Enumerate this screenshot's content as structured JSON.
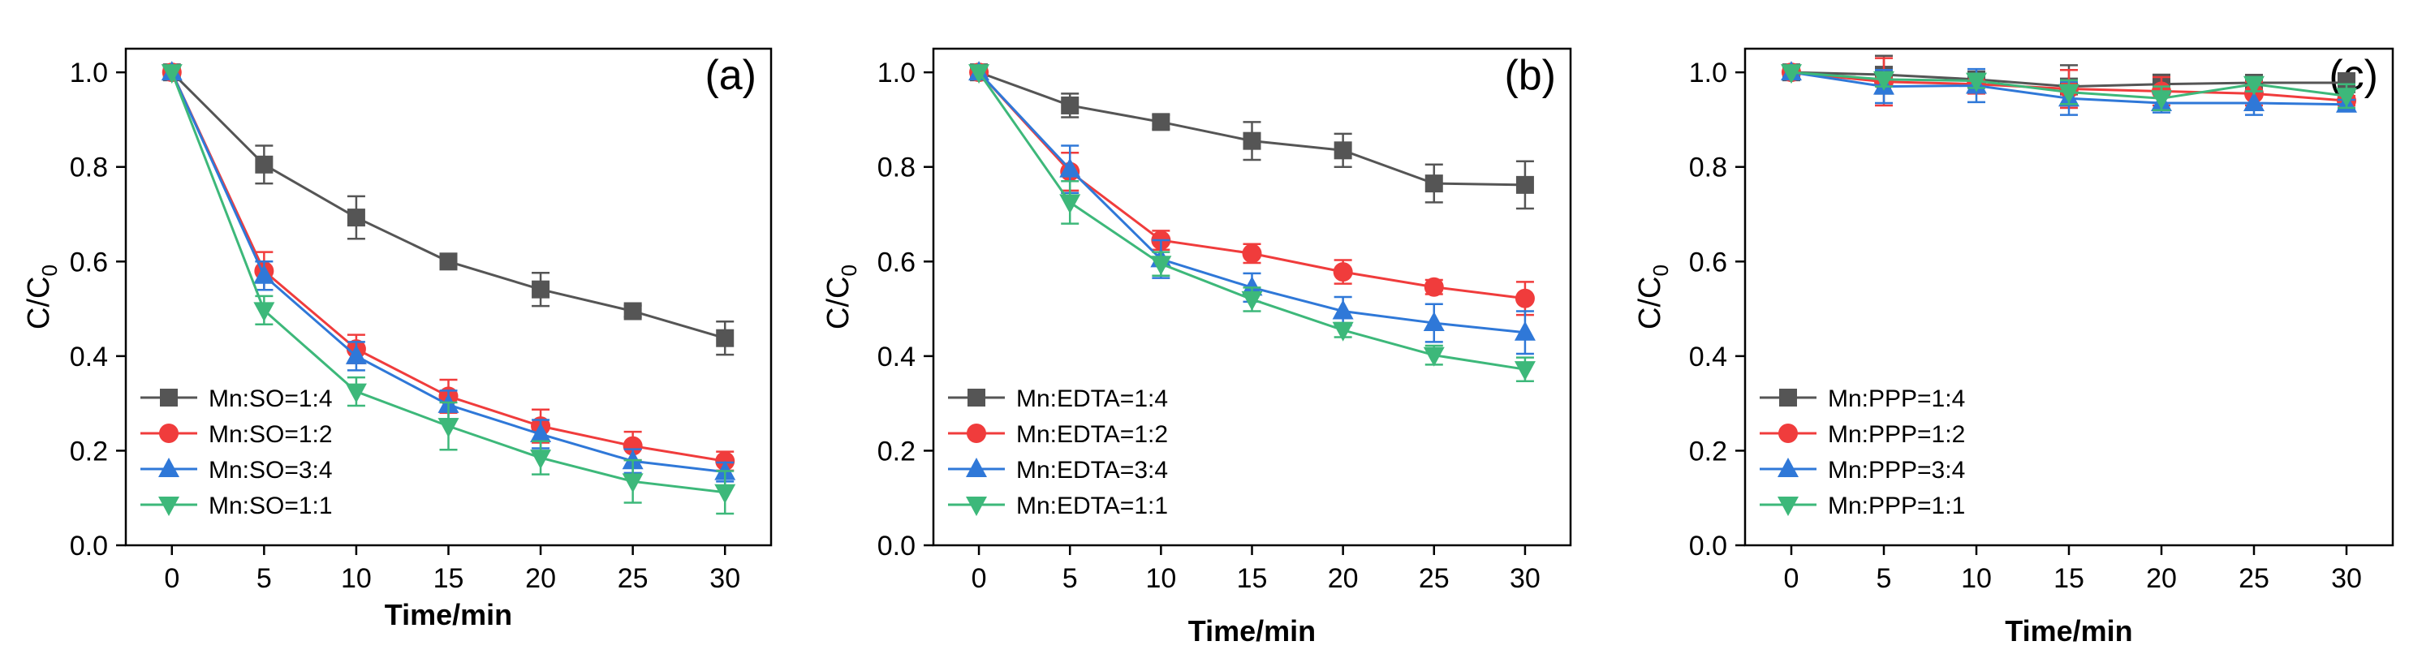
{
  "figure": {
    "description_free": true
  },
  "chart_data": [
    {
      "type": "line",
      "panel_label": "(a)",
      "xlabel": "Time/min",
      "ylabel": "C/C",
      "ylabel_subscript": "0",
      "x": [
        0,
        5,
        10,
        15,
        20,
        25,
        30
      ],
      "xticks": [
        "0",
        "5",
        "10",
        "15",
        "20",
        "25",
        "30"
      ],
      "yticks": [
        "0.0",
        "0.2",
        "0.4",
        "0.6",
        "0.8",
        "1.0"
      ],
      "xlim": [
        -2.5,
        32.5
      ],
      "ylim": [
        0,
        1.05
      ],
      "legend_position": "bottom-left",
      "series": [
        {
          "name": "Mn:SO=1:4",
          "color": "#555555",
          "marker": "square",
          "values": [
            1.0,
            0.805,
            0.693,
            0.6,
            0.541,
            0.495,
            0.438
          ],
          "errors": [
            0.0,
            0.04,
            0.045,
            0.01,
            0.035,
            0.012,
            0.035
          ]
        },
        {
          "name": "Mn:SO=1:2",
          "color": "#f03c3c",
          "marker": "circle",
          "values": [
            1.0,
            0.58,
            0.415,
            0.315,
            0.252,
            0.21,
            0.178
          ],
          "errors": [
            0.0,
            0.04,
            0.03,
            0.035,
            0.035,
            0.03,
            0.02
          ]
        },
        {
          "name": "Mn:SO=3:4",
          "color": "#2f78d8",
          "marker": "triangle-up",
          "values": [
            1.0,
            0.57,
            0.4,
            0.297,
            0.235,
            0.178,
            0.155
          ],
          "errors": [
            0.0,
            0.03,
            0.03,
            0.03,
            0.03,
            0.025,
            0.02
          ]
        },
        {
          "name": "Mn:SO=1:1",
          "color": "#3db87a",
          "marker": "triangle-down",
          "values": [
            1.0,
            0.497,
            0.325,
            0.252,
            0.185,
            0.135,
            0.112
          ],
          "errors": [
            0.0,
            0.03,
            0.03,
            0.05,
            0.035,
            0.045,
            0.045
          ]
        }
      ]
    },
    {
      "type": "line",
      "panel_label": "(b)",
      "xlabel": "Time/min",
      "ylabel": "C/C",
      "ylabel_subscript": "0",
      "x": [
        0,
        5,
        10,
        15,
        20,
        25,
        30
      ],
      "xticks": [
        "0",
        "5",
        "10",
        "15",
        "20",
        "25",
        "30"
      ],
      "yticks": [
        "0.0",
        "0.2",
        "0.4",
        "0.6",
        "0.8",
        "1.0"
      ],
      "xlim": [
        -2.5,
        32.5
      ],
      "ylim": [
        0,
        1.05
      ],
      "legend_position": "bottom-left",
      "series": [
        {
          "name": "Mn:EDTA=1:4",
          "color": "#555555",
          "marker": "square",
          "values": [
            1.0,
            0.93,
            0.895,
            0.855,
            0.835,
            0.765,
            0.762
          ],
          "errors": [
            0.0,
            0.025,
            0.015,
            0.04,
            0.035,
            0.04,
            0.05
          ]
        },
        {
          "name": "Mn:EDTA=1:2",
          "color": "#f03c3c",
          "marker": "circle",
          "values": [
            1.0,
            0.79,
            0.645,
            0.617,
            0.578,
            0.546,
            0.522
          ],
          "errors": [
            0.0,
            0.04,
            0.02,
            0.02,
            0.025,
            0.015,
            0.035
          ]
        },
        {
          "name": "Mn:EDTA=3:4",
          "color": "#2f78d8",
          "marker": "triangle-up",
          "values": [
            1.0,
            0.795,
            0.605,
            0.545,
            0.495,
            0.47,
            0.45
          ],
          "errors": [
            0.0,
            0.05,
            0.04,
            0.03,
            0.03,
            0.04,
            0.045
          ]
        },
        {
          "name": "Mn:EDTA=1:1",
          "color": "#3db87a",
          "marker": "triangle-down",
          "values": [
            1.0,
            0.725,
            0.595,
            0.52,
            0.455,
            0.402,
            0.372
          ],
          "errors": [
            0.0,
            0.045,
            0.025,
            0.025,
            0.015,
            0.02,
            0.025
          ]
        }
      ]
    },
    {
      "type": "line",
      "panel_label": "(c)",
      "xlabel": "Time/min",
      "ylabel": "C/C",
      "ylabel_subscript": "0",
      "x": [
        0,
        5,
        10,
        15,
        20,
        25,
        30
      ],
      "xticks": [
        "0",
        "5",
        "10",
        "15",
        "20",
        "25",
        "30"
      ],
      "yticks": [
        "0.0",
        "0.2",
        "0.4",
        "0.6",
        "0.8",
        "1.0"
      ],
      "xlim": [
        -2.5,
        32.5
      ],
      "ylim": [
        0,
        1.05
      ],
      "legend_position": "bottom-left",
      "series": [
        {
          "name": "Mn:PPP=1:4",
          "color": "#555555",
          "marker": "square",
          "values": [
            1.0,
            0.995,
            0.985,
            0.97,
            0.975,
            0.978,
            0.978
          ],
          "errors": [
            0.0,
            0.04,
            0.01,
            0.045,
            0.02,
            0.015,
            0.02
          ]
        },
        {
          "name": "Mn:PPP=1:2",
          "color": "#f03c3c",
          "marker": "circle",
          "values": [
            1.0,
            0.98,
            0.975,
            0.965,
            0.96,
            0.955,
            0.94
          ],
          "errors": [
            0.0,
            0.05,
            0.02,
            0.04,
            0.03,
            0.025,
            0.01
          ]
        },
        {
          "name": "Mn:PPP=3:4",
          "color": "#2f78d8",
          "marker": "triangle-up",
          "values": [
            1.0,
            0.97,
            0.972,
            0.945,
            0.935,
            0.935,
            0.932
          ],
          "errors": [
            0.0,
            0.035,
            0.035,
            0.035,
            0.02,
            0.025,
            0.01
          ]
        },
        {
          "name": "Mn:PPP=1:1",
          "color": "#3db87a",
          "marker": "triangle-down",
          "values": [
            1.0,
            0.985,
            0.982,
            0.958,
            0.945,
            0.975,
            0.95
          ],
          "errors": [
            0.0,
            0.015,
            0.015,
            0.025,
            0.025,
            0.015,
            0.025
          ]
        }
      ]
    }
  ]
}
